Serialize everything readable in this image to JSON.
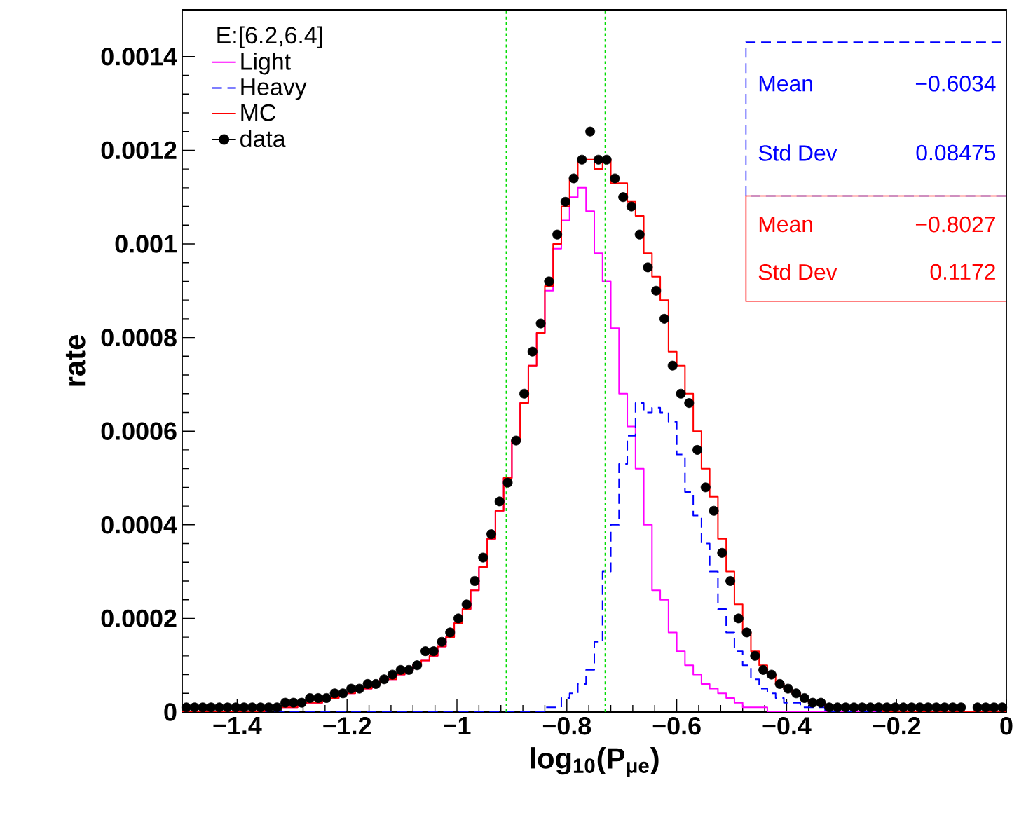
{
  "chart_data": {
    "type": "histogram",
    "xlabel": "log$_{10}$(P$_{μe}$)",
    "ylabel": "rate",
    "legend_title": "E:[6.2,6.4]",
    "xlim": [
      -1.5,
      0
    ],
    "ylim": [
      0,
      0.0015
    ],
    "xticks": [
      {
        "value": -1.4,
        "label": "−1.4"
      },
      {
        "value": -1.2,
        "label": "−1.2"
      },
      {
        "value": -1,
        "label": "−1"
      },
      {
        "value": -0.8,
        "label": "−0.8"
      },
      {
        "value": -0.6,
        "label": "−0.6"
      },
      {
        "value": -0.4,
        "label": "−0.4"
      },
      {
        "value": -0.2,
        "label": "−0.2"
      },
      0
    ],
    "yticks": [
      0,
      0.0002,
      0.0004,
      0.0006,
      0.0008,
      0.001,
      0.0012,
      0.0014
    ],
    "legend": "top left",
    "grid": false,
    "bins": [
      -1.5,
      -1.485,
      -1.47,
      -1.455,
      -1.44,
      -1.425,
      -1.41,
      -1.395,
      -1.38,
      -1.365,
      -1.35,
      -1.335,
      -1.32,
      -1.305,
      -1.29,
      -1.275,
      -1.26,
      -1.245,
      -1.23,
      -1.215,
      -1.2,
      -1.185,
      -1.17,
      -1.155,
      -1.14,
      -1.125,
      -1.11,
      -1.095,
      -1.08,
      -1.065,
      -1.05,
      -1.035,
      -1.02,
      -1.005,
      -0.99,
      -0.975,
      -0.96,
      -0.945,
      -0.93,
      -0.915,
      -0.9,
      -0.885,
      -0.87,
      -0.855,
      -0.84,
      -0.825,
      -0.81,
      -0.795,
      -0.78,
      -0.765,
      -0.75,
      -0.735,
      -0.72,
      -0.705,
      -0.69,
      -0.675,
      -0.66,
      -0.645,
      -0.63,
      -0.615,
      -0.6,
      -0.585,
      -0.57,
      -0.555,
      -0.54,
      -0.525,
      -0.51,
      -0.495,
      -0.48,
      -0.465,
      -0.45,
      -0.435,
      -0.42,
      -0.405,
      -0.39,
      -0.375,
      -0.36,
      -0.345,
      -0.33,
      -0.315,
      -0.3,
      -0.285,
      -0.27,
      -0.255,
      -0.24,
      -0.225,
      -0.21,
      -0.195,
      -0.18,
      -0.165,
      -0.15,
      -0.135,
      -0.12,
      -0.105,
      -0.09,
      -0.075,
      -0.06,
      -0.045,
      -0.03,
      -0.015,
      0
    ],
    "series": [
      {
        "name": "Light",
        "color": "#ff00ff",
        "line_style": "solid",
        "values": [
          0,
          0,
          0,
          0,
          0,
          0,
          0,
          0,
          0,
          0,
          1e-05,
          1e-05,
          1e-05,
          1e-05,
          2e-05,
          2e-05,
          2e-05,
          3e-05,
          3e-05,
          4e-05,
          4e-05,
          5e-05,
          5e-05,
          6e-05,
          7e-05,
          7e-05,
          8e-05,
          9e-05,
          0.0001,
          0.00011,
          0.00012,
          0.00014,
          0.00016,
          0.00019,
          0.00022,
          0.00026,
          0.00031,
          0.00037,
          0.00043,
          0.0005,
          0.00058,
          0.00066,
          0.00074,
          0.00081,
          0.0009,
          0.00099,
          0.00105,
          0.0011,
          0.00112,
          0.00107,
          0.00098,
          0.00092,
          0.00082,
          0.00068,
          0.00061,
          0.00052,
          0.0004,
          0.00026,
          0.00024,
          0.00017,
          0.00013,
          0.0001,
          8e-05,
          6e-05,
          5e-05,
          4e-05,
          3e-05,
          2e-05,
          1e-05,
          1e-05,
          1e-05,
          0,
          0,
          0,
          0,
          0,
          0,
          0,
          0,
          0,
          0,
          0,
          0,
          0,
          0,
          0,
          0,
          0,
          0,
          0,
          0,
          0,
          0,
          0,
          0,
          0,
          0,
          0,
          0,
          0
        ]
      },
      {
        "name": "Heavy",
        "color": "#0000ff",
        "line_style": "dashed",
        "values": [
          0,
          0,
          0,
          0,
          0,
          0,
          0,
          0,
          0,
          0,
          0,
          0,
          0,
          0,
          0,
          0,
          0,
          0,
          0,
          0,
          0,
          0,
          0,
          0,
          0,
          0,
          0,
          0,
          0,
          0,
          0,
          0,
          0,
          0,
          0,
          0,
          0,
          0,
          0,
          0,
          0,
          0,
          0,
          0,
          1e-05,
          1e-05,
          3e-05,
          4e-05,
          6e-05,
          9e-05,
          0.00015,
          0.0003,
          0.0004,
          0.00053,
          0.00059,
          0.00066,
          0.00064,
          0.00065,
          0.00064,
          0.00062,
          0.00055,
          0.00047,
          0.00042,
          0.00036,
          0.0003,
          0.00022,
          0.00017,
          0.00013,
          0.0001,
          7e-05,
          5e-05,
          4e-05,
          3e-05,
          2e-05,
          2e-05,
          1e-05,
          1e-05,
          1e-05,
          0,
          0,
          0,
          0,
          0,
          0,
          0,
          0,
          0,
          0,
          0,
          0,
          0,
          0,
          0,
          0,
          0,
          0,
          0,
          0,
          0,
          0
        ]
      },
      {
        "name": "MC",
        "color": "#ff0000",
        "line_style": "solid",
        "values": [
          0,
          0,
          0,
          0,
          0,
          0,
          0,
          0,
          0,
          0,
          1e-05,
          1e-05,
          1e-05,
          1e-05,
          2e-05,
          2e-05,
          2e-05,
          3e-05,
          3e-05,
          4e-05,
          4e-05,
          5e-05,
          5e-05,
          6e-05,
          7e-05,
          7e-05,
          8e-05,
          9e-05,
          0.0001,
          0.00011,
          0.00012,
          0.00014,
          0.00016,
          0.00019,
          0.00022,
          0.00026,
          0.00031,
          0.00037,
          0.00043,
          0.0005,
          0.00058,
          0.00066,
          0.00074,
          0.00081,
          0.00091,
          0.001,
          0.00108,
          0.00114,
          0.00118,
          0.00118,
          0.00116,
          0.00118,
          0.00113,
          0.00113,
          0.00109,
          0.00106,
          0.00098,
          0.00093,
          0.00088,
          0.00077,
          0.00074,
          0.00068,
          0.0006,
          0.00052,
          0.00046,
          0.00037,
          0.0003,
          0.00023,
          0.00017,
          0.00013,
          0.0001,
          8e-05,
          6e-05,
          5e-05,
          4e-05,
          3e-05,
          2e-05,
          2e-05,
          1e-05,
          1e-05,
          1e-05,
          1e-05,
          1e-05,
          1e-05,
          1e-05,
          0,
          0,
          0,
          0,
          0,
          0,
          0,
          0,
          0,
          0,
          0,
          0,
          0,
          0,
          0
        ]
      },
      {
        "name": "data",
        "type": "scatter",
        "marker": "circle",
        "color": "#000000",
        "x": [
          -1.4925,
          -1.4775,
          -1.4625,
          -1.4475,
          -1.4325,
          -1.4175,
          -1.4025,
          -1.3875,
          -1.3725,
          -1.3575,
          -1.3425,
          -1.3275,
          -1.3125,
          -1.2975,
          -1.2825,
          -1.2675,
          -1.2525,
          -1.2375,
          -1.2225,
          -1.2075,
          -1.1925,
          -1.1775,
          -1.1625,
          -1.1475,
          -1.1325,
          -1.1175,
          -1.1025,
          -1.0875,
          -1.0725,
          -1.0575,
          -1.0425,
          -1.0275,
          -1.0125,
          -0.9975,
          -0.9825,
          -0.9675,
          -0.9525,
          -0.9375,
          -0.9225,
          -0.9075,
          -0.8925,
          -0.8775,
          -0.8625,
          -0.8475,
          -0.8325,
          -0.8175,
          -0.8025,
          -0.7875,
          -0.7725,
          -0.7575,
          -0.7425,
          -0.7275,
          -0.7125,
          -0.6975,
          -0.6825,
          -0.6675,
          -0.6525,
          -0.6375,
          -0.6225,
          -0.6075,
          -0.5925,
          -0.5775,
          -0.5625,
          -0.5475,
          -0.5325,
          -0.5175,
          -0.5025,
          -0.4875,
          -0.4725,
          -0.4575,
          -0.4425,
          -0.4275,
          -0.4125,
          -0.3975,
          -0.3825,
          -0.3675,
          -0.3525,
          -0.3375,
          -0.3225,
          -0.3075,
          -0.2925,
          -0.2775,
          -0.2625,
          -0.2475,
          -0.2325,
          -0.2175,
          -0.2025,
          -0.1875,
          -0.1725,
          -0.1575,
          -0.1425,
          -0.1275,
          -0.1125,
          -0.0975,
          -0.0825,
          -0.0675,
          -0.0525,
          -0.0375,
          -0.0225,
          -0.0075
        ],
        "values": [
          1e-05,
          1e-05,
          1e-05,
          1e-05,
          1e-05,
          1e-05,
          1e-05,
          1e-05,
          1e-05,
          1e-05,
          1e-05,
          1e-05,
          2e-05,
          2e-05,
          2e-05,
          3e-05,
          3e-05,
          3e-05,
          4e-05,
          4e-05,
          5e-05,
          5e-05,
          6e-05,
          6e-05,
          7e-05,
          8e-05,
          9e-05,
          9e-05,
          0.0001,
          0.00013,
          0.00013,
          0.00015,
          0.00017,
          0.0002,
          0.00023,
          0.00028,
          0.00033,
          0.00038,
          0.00045,
          0.00049,
          0.00058,
          0.00068,
          0.00077,
          0.00083,
          0.00092,
          0.00102,
          0.00109,
          0.00114,
          0.00118,
          0.00124,
          0.00118,
          0.00118,
          0.00114,
          0.0011,
          0.00108,
          0.00102,
          0.00095,
          0.0009,
          0.00084,
          0.00074,
          0.00068,
          0.00066,
          0.00056,
          0.00048,
          0.00043,
          0.00034,
          0.00028,
          0.0002,
          0.00017,
          0.00012,
          9e-05,
          8e-05,
          6e-05,
          5e-05,
          4e-05,
          3e-05,
          2e-05,
          2e-05,
          1e-05,
          1e-05,
          1e-05,
          1e-05,
          1e-05,
          1e-05,
          1e-05,
          1e-05,
          1e-05,
          1e-05,
          1e-05,
          1e-05,
          1e-05,
          1e-05,
          1e-05,
          1e-05,
          1e-05,
          null,
          1e-05,
          1e-05,
          1e-05,
          1e-05
        ]
      }
    ],
    "ref_lines": [
      {
        "axis": "x",
        "value": -0.91,
        "color": "#00dd00",
        "line_style": "dotted"
      },
      {
        "axis": "x",
        "value": -0.73,
        "color": "#00dd00",
        "line_style": "dotted"
      }
    ],
    "annotations": [
      "Mean",
      "−0.6034",
      "Std Dev",
      "0.08475",
      "Mean",
      "−0.8027",
      "Std Dev",
      "0.1172"
    ]
  }
}
